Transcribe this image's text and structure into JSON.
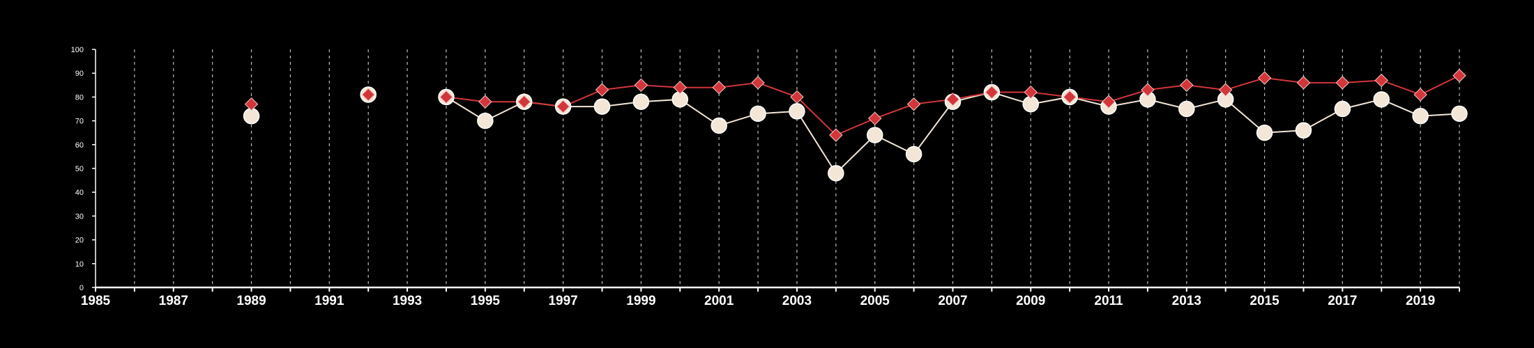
{
  "chart_data": {
    "type": "line",
    "title": "",
    "xlabel": "",
    "ylabel": "",
    "xlim": [
      1985,
      2020
    ],
    "ylim": [
      0,
      100
    ],
    "x_ticks": [
      1985,
      1987,
      1989,
      1991,
      1993,
      1995,
      1997,
      1999,
      2001,
      2003,
      2005,
      2007,
      2009,
      2011,
      2013,
      2015,
      2017,
      2019
    ],
    "y_ticks": [
      0,
      10,
      20,
      30,
      40,
      50,
      60,
      70,
      80,
      90,
      100
    ],
    "grid": "vertical dashed lines at each year",
    "legend": "none",
    "background_color": "#000000",
    "series": [
      {
        "marker": "diamond",
        "color": "#d3363a",
        "x": [
          1989,
          1992,
          1994,
          1995,
          1996,
          1997,
          1998,
          1999,
          2000,
          2001,
          2002,
          2003,
          2004,
          2005,
          2006,
          2007,
          2008,
          2009,
          2010,
          2011,
          2012,
          2013,
          2014,
          2015,
          2016,
          2017,
          2018,
          2019,
          2020
        ],
        "values": [
          77,
          81,
          80,
          78,
          78,
          76,
          83,
          85,
          84,
          84,
          86,
          80,
          64,
          71,
          77,
          79,
          82,
          82,
          80,
          78,
          83,
          85,
          83,
          88,
          86,
          86,
          87,
          81,
          89
        ]
      },
      {
        "marker": "circle",
        "color": "#f3e6d6",
        "x": [
          1989,
          1992,
          1994,
          1995,
          1996,
          1997,
          1998,
          1999,
          2000,
          2001,
          2002,
          2003,
          2004,
          2005,
          2006,
          2007,
          2008,
          2009,
          2010,
          2011,
          2012,
          2013,
          2014,
          2015,
          2016,
          2017,
          2018,
          2019,
          2020
        ],
        "values": [
          72,
          81,
          80,
          70,
          78,
          76,
          76,
          78,
          79,
          68,
          73,
          74,
          48,
          64,
          56,
          78,
          82,
          77,
          80,
          76,
          79,
          75,
          79,
          65,
          66,
          75,
          79,
          72,
          73
        ]
      }
    ]
  }
}
